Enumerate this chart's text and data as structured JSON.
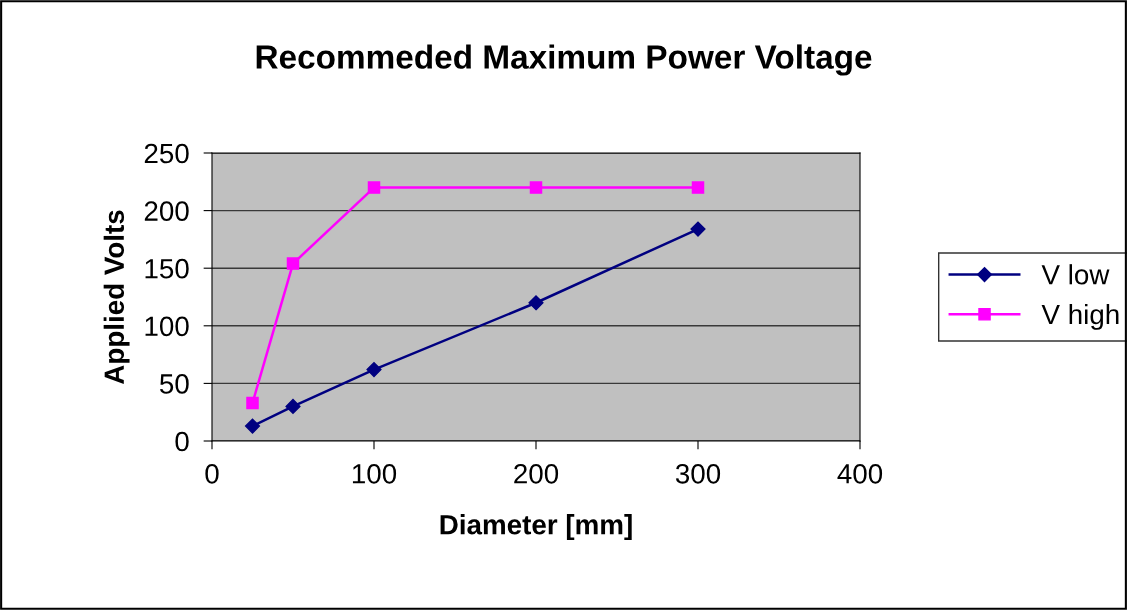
{
  "chart_data": {
    "type": "line",
    "title": "Recommeded Maximum Power Voltage",
    "xlabel": "Diameter [mm]",
    "ylabel": "Applied Volts",
    "x": [
      25,
      50,
      100,
      200,
      300
    ],
    "series": [
      {
        "name": "V low",
        "color": "#000080",
        "marker": "diamond",
        "values": [
          13,
          30,
          62,
          120,
          184
        ]
      },
      {
        "name": "V high",
        "color": "#ff00ff",
        "marker": "square",
        "values": [
          33,
          154,
          220,
          220,
          220
        ]
      }
    ],
    "xlim": [
      0,
      400
    ],
    "xticks": [
      0,
      100,
      200,
      300,
      400
    ],
    "ylim": [
      0,
      250
    ],
    "yticks": [
      0,
      50,
      100,
      150,
      200,
      250
    ],
    "grid": "y",
    "legend": "right",
    "line_style": "solid"
  }
}
